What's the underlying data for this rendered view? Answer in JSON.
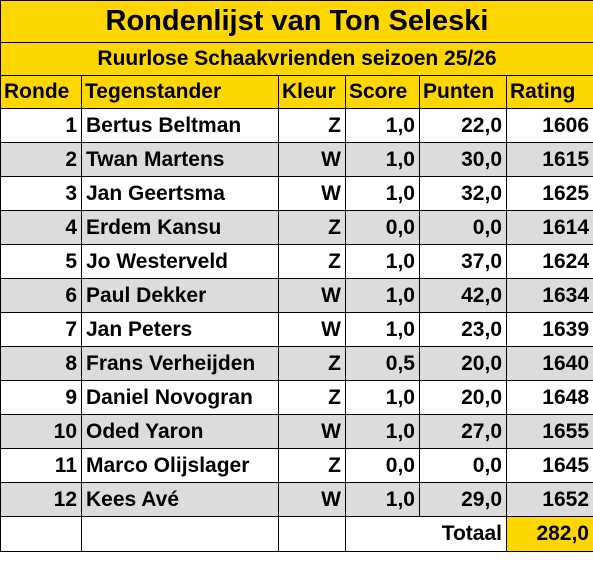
{
  "title": "Rondenlijst van Ton Seleski",
  "subtitle": "Ruurlose Schaakvrienden seizoen 25/26",
  "headers": {
    "ronde": "Ronde",
    "tegenstander": "Tegenstander",
    "kleur": "Kleur",
    "score": "Score",
    "punten": "Punten",
    "rating": "Rating"
  },
  "rows": [
    {
      "ronde": "1",
      "tegenstander": "Bertus Beltman",
      "kleur": "Z",
      "score": "1,0",
      "punten": "22,0",
      "rating": "1606"
    },
    {
      "ronde": "2",
      "tegenstander": "Twan Martens",
      "kleur": "W",
      "score": "1,0",
      "punten": "30,0",
      "rating": "1615"
    },
    {
      "ronde": "3",
      "tegenstander": "Jan Geertsma",
      "kleur": "W",
      "score": "1,0",
      "punten": "32,0",
      "rating": "1625"
    },
    {
      "ronde": "4",
      "tegenstander": "Erdem Kansu",
      "kleur": "Z",
      "score": "0,0",
      "punten": "0,0",
      "rating": "1614"
    },
    {
      "ronde": "5",
      "tegenstander": "Jo Westerveld",
      "kleur": "Z",
      "score": "1,0",
      "punten": "37,0",
      "rating": "1624"
    },
    {
      "ronde": "6",
      "tegenstander": "Paul Dekker",
      "kleur": "W",
      "score": "1,0",
      "punten": "42,0",
      "rating": "1634"
    },
    {
      "ronde": "7",
      "tegenstander": "Jan Peters",
      "kleur": "W",
      "score": "1,0",
      "punten": "23,0",
      "rating": "1639"
    },
    {
      "ronde": "8",
      "tegenstander": "Frans Verheijden",
      "kleur": "Z",
      "score": "0,5",
      "punten": "20,0",
      "rating": "1640"
    },
    {
      "ronde": "9",
      "tegenstander": "Daniel Novogran",
      "kleur": "Z",
      "score": "1,0",
      "punten": "20,0",
      "rating": "1648"
    },
    {
      "ronde": "10",
      "tegenstander": "Oded Yaron",
      "kleur": "W",
      "score": "1,0",
      "punten": "27,0",
      "rating": "1655"
    },
    {
      "ronde": "11",
      "tegenstander": "Marco Olijslager",
      "kleur": "Z",
      "score": "0,0",
      "punten": "0,0",
      "rating": "1645"
    },
    {
      "ronde": "12",
      "tegenstander": "Kees Avé",
      "kleur": "W",
      "score": "1,0",
      "punten": "29,0",
      "rating": "1652"
    }
  ],
  "total": {
    "label": "Totaal",
    "value": "282,0"
  },
  "colors": {
    "header_bg": "#ffd700",
    "alt_row_bg": "#dcdcdc",
    "row_bg": "#ffffff",
    "border": "#000000"
  }
}
